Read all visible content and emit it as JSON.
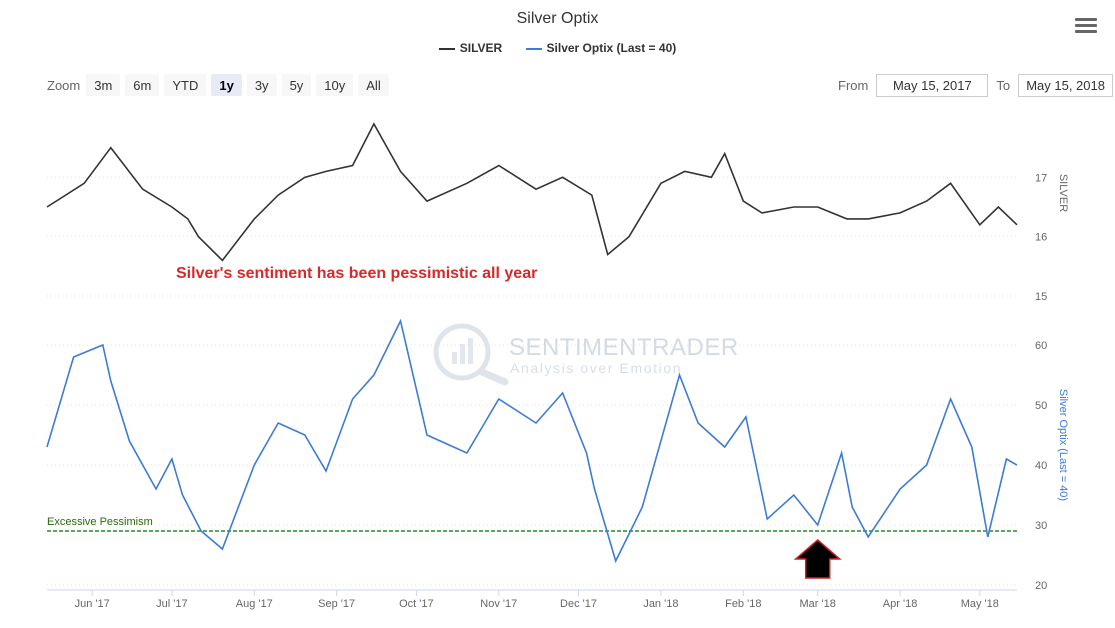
{
  "title": "Silver Optix",
  "legend": [
    {
      "name": "SILVER",
      "color": "#333333"
    },
    {
      "name": "Silver Optix (Last = 40)",
      "color": "#3d7bd5"
    }
  ],
  "zoom": {
    "label": "Zoom",
    "buttons": [
      "3m",
      "6m",
      "YTD",
      "1y",
      "3y",
      "5y",
      "10y",
      "All"
    ],
    "active": "1y"
  },
  "range": {
    "from_label": "From",
    "from_value": "May 15, 2017",
    "to_label": "To",
    "to_value": "May 15, 2018"
  },
  "annotation": "Silver's sentiment has been pessimistic all year",
  "excessive_pessimism_label": "Excessive Pessimism",
  "watermark": {
    "title": "SENTIMENTRADER",
    "subtitle": "Analysis over Emotion"
  },
  "chart_data": [
    {
      "type": "line",
      "series_name": "SILVER",
      "ylabel": "SILVER",
      "ylim": [
        15,
        18
      ],
      "yticks": [
        15,
        16,
        17
      ],
      "x": [
        "2017-05-15",
        "2017-05-29",
        "2017-06-08",
        "2017-06-20",
        "2017-07-01",
        "2017-07-07",
        "2017-07-11",
        "2017-07-20",
        "2017-08-01",
        "2017-08-10",
        "2017-08-20",
        "2017-08-28",
        "2017-09-07",
        "2017-09-15",
        "2017-09-25",
        "2017-10-05",
        "2017-10-20",
        "2017-11-01",
        "2017-11-15",
        "2017-11-25",
        "2017-12-06",
        "2017-12-12",
        "2017-12-20",
        "2018-01-01",
        "2018-01-10",
        "2018-01-20",
        "2018-01-25",
        "2018-02-01",
        "2018-02-08",
        "2018-02-20",
        "2018-03-01",
        "2018-03-12",
        "2018-03-20",
        "2018-04-01",
        "2018-04-11",
        "2018-04-20",
        "2018-05-01",
        "2018-05-08",
        "2018-05-15"
      ],
      "values": [
        16.5,
        16.9,
        17.5,
        16.8,
        16.5,
        16.3,
        16.0,
        15.6,
        16.3,
        16.7,
        17.0,
        17.1,
        17.2,
        17.9,
        17.1,
        16.6,
        16.9,
        17.2,
        16.8,
        17.0,
        16.7,
        15.7,
        16.0,
        16.9,
        17.1,
        17.0,
        17.4,
        16.6,
        16.4,
        16.5,
        16.5,
        16.3,
        16.3,
        16.4,
        16.6,
        16.9,
        16.2,
        16.5,
        16.2
      ]
    },
    {
      "type": "line",
      "series_name": "Silver Optix (Last = 40)",
      "ylabel": "Silver Optix (Last = 40)",
      "ylim": [
        20,
        65
      ],
      "yticks": [
        20,
        30,
        40,
        50,
        60
      ],
      "x": [
        "2017-05-15",
        "2017-05-25",
        "2017-06-05",
        "2017-06-08",
        "2017-06-15",
        "2017-06-25",
        "2017-07-01",
        "2017-07-05",
        "2017-07-12",
        "2017-07-20",
        "2017-08-01",
        "2017-08-10",
        "2017-08-20",
        "2017-08-28",
        "2017-09-07",
        "2017-09-15",
        "2017-09-25",
        "2017-10-05",
        "2017-10-20",
        "2017-11-01",
        "2017-11-15",
        "2017-11-25",
        "2017-12-04",
        "2017-12-07",
        "2017-12-15",
        "2017-12-25",
        "2018-01-08",
        "2018-01-15",
        "2018-01-25",
        "2018-02-02",
        "2018-02-10",
        "2018-02-20",
        "2018-03-01",
        "2018-03-10",
        "2018-03-14",
        "2018-03-20",
        "2018-04-01",
        "2018-04-11",
        "2018-04-20",
        "2018-04-28",
        "2018-05-04",
        "2018-05-11",
        "2018-05-15"
      ],
      "values": [
        43,
        58,
        60,
        54,
        44,
        36,
        41,
        35,
        29,
        26,
        40,
        47,
        45,
        39,
        51,
        55,
        64,
        45,
        42,
        51,
        47,
        52,
        42,
        36,
        24,
        33,
        55,
        47,
        43,
        48,
        31,
        35,
        30,
        42,
        33,
        28,
        36,
        40,
        51,
        43,
        28,
        41,
        40
      ]
    }
  ],
  "reference_line": {
    "value": 29,
    "label": "Excessive Pessimism"
  },
  "x_ticks": [
    "Jun '17",
    "Jul '17",
    "Aug '17",
    "Sep '17",
    "Oct '17",
    "Nov '17",
    "Dec '17",
    "Jan '18",
    "Feb '18",
    "Mar '18",
    "Apr '18",
    "May '18"
  ],
  "x_tick_dates": [
    "2017-06-01",
    "2017-07-01",
    "2017-08-01",
    "2017-09-01",
    "2017-10-01",
    "2017-11-01",
    "2017-12-01",
    "2018-01-01",
    "2018-02-01",
    "2018-03-01",
    "2018-04-01",
    "2018-05-01"
  ],
  "arrow_marker": {
    "date": "2018-03-01",
    "color": "#000000",
    "outline": "#cc2222"
  }
}
